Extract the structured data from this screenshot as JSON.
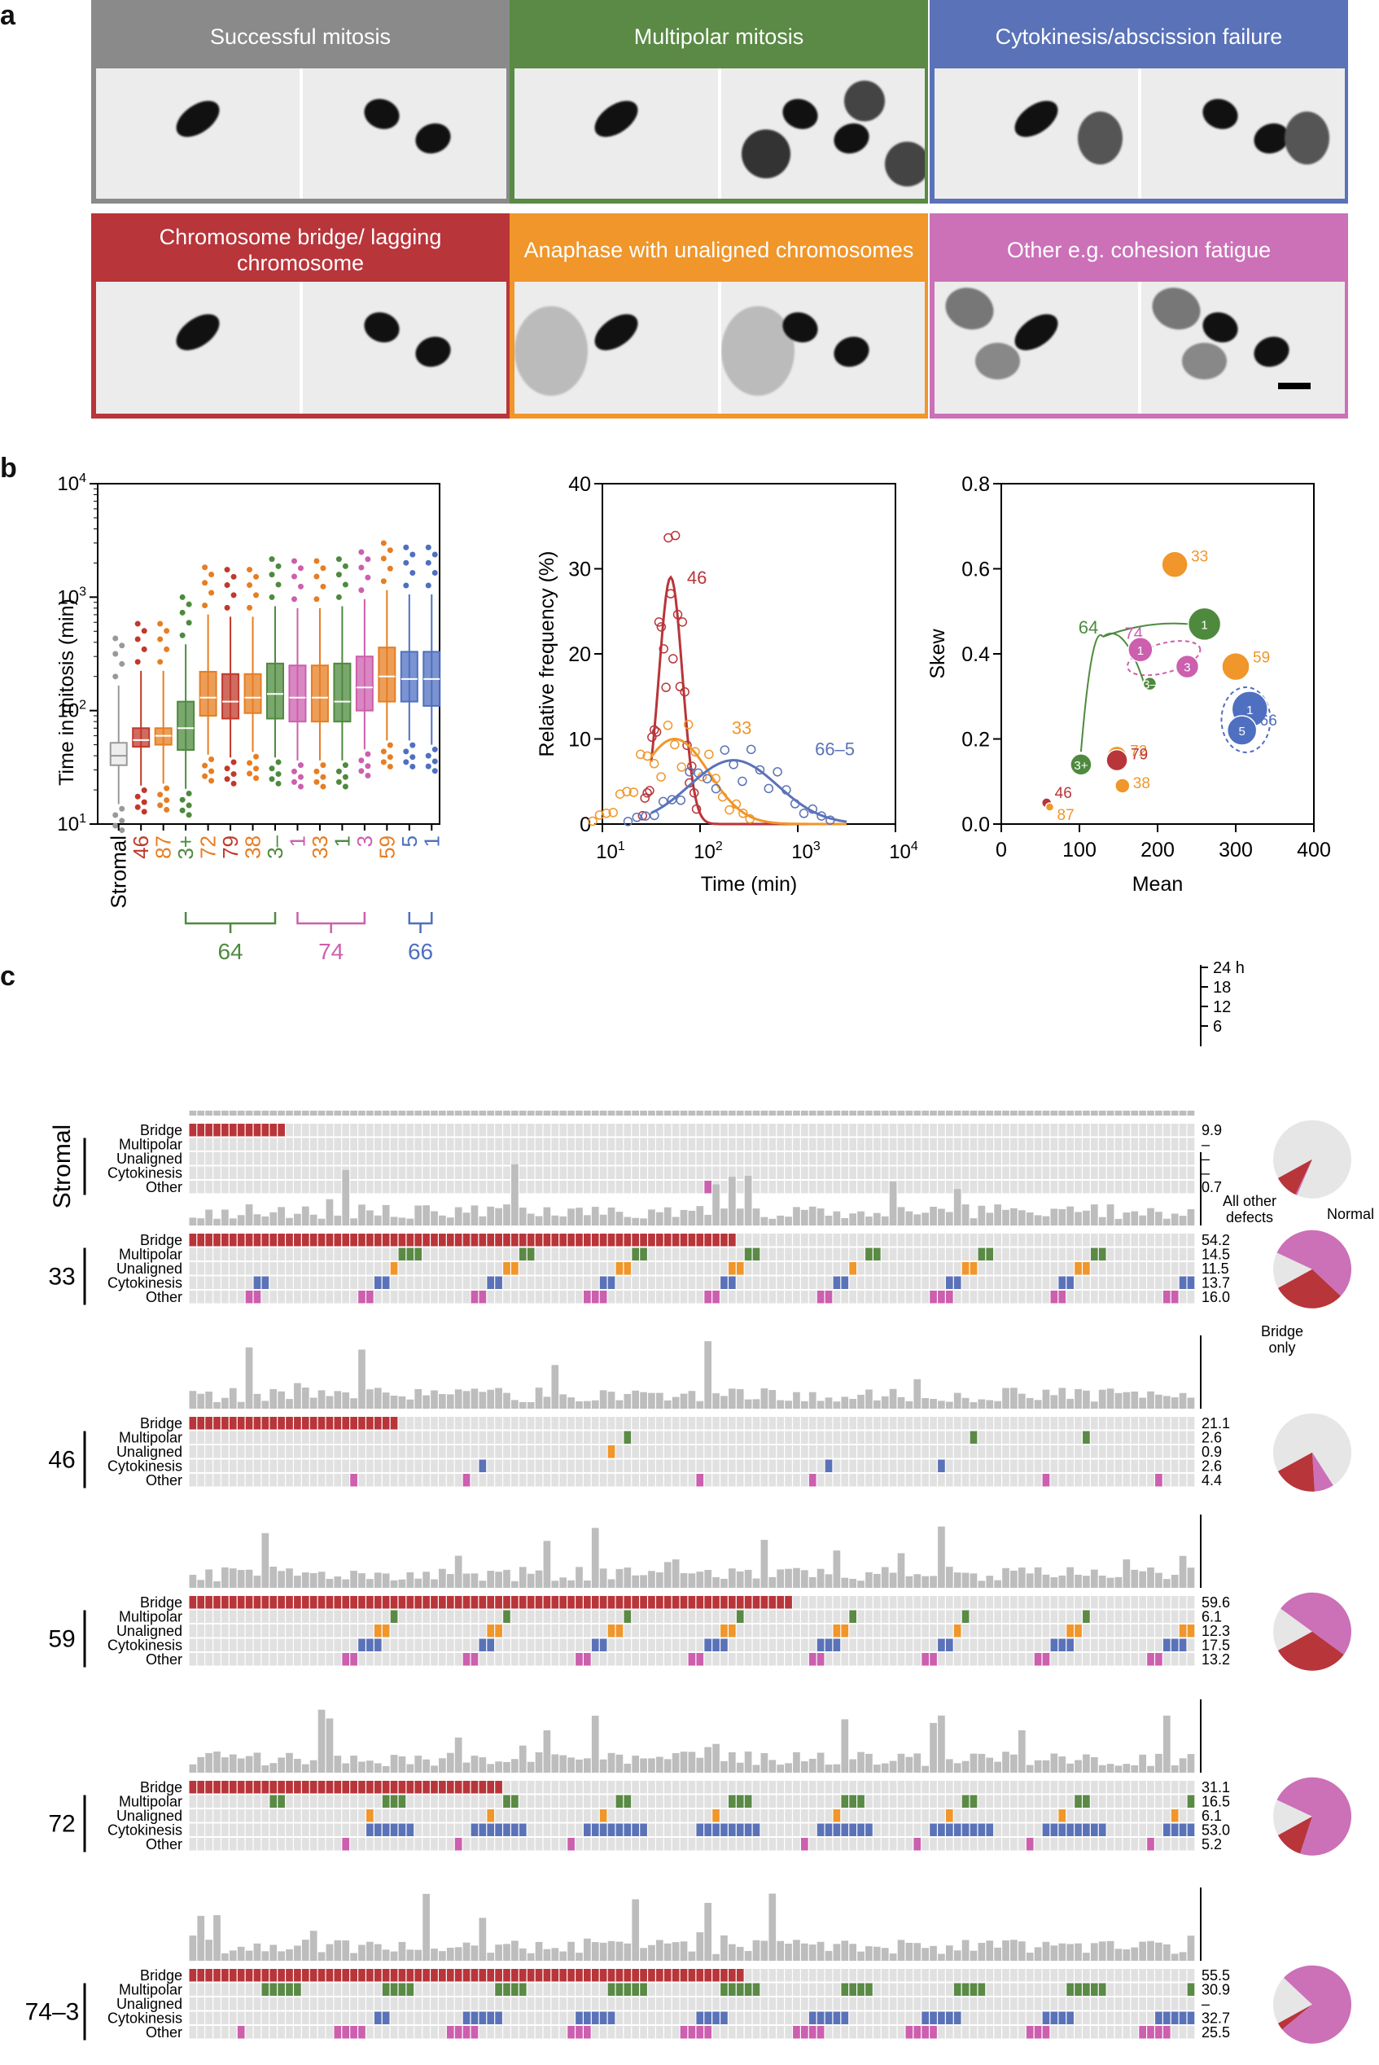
{
  "labels": {
    "a": "a",
    "b": "b",
    "c": "c"
  },
  "panels": [
    {
      "title": "Successful mitosis",
      "color": "#8a8a8a"
    },
    {
      "title": "Multipolar mitosis",
      "color": "#5a8a45"
    },
    {
      "title": "Cytokinesis/abscission failure",
      "color": "#5a72b8"
    },
    {
      "title": "Chromosome bridge/ lagging chromosome",
      "color": "#b8353a"
    },
    {
      "title": "Anaphase with unaligned chromosomes",
      "color": "#f0962a"
    },
    {
      "title": "Other e.g. cohesion fatigue",
      "color": "#cc70b8"
    }
  ],
  "chart_data": [
    {
      "type": "box",
      "ylabel": "Time in mitosis (min)",
      "yscale": "log",
      "ylim": [
        10,
        10000
      ],
      "ticks": [
        "10^1",
        "10^2",
        "10^3",
        "10^4"
      ],
      "categories": [
        "Stromal",
        "46",
        "87",
        "3+",
        "72",
        "79",
        "38",
        "3–",
        "1",
        "33",
        "1",
        "3",
        "59",
        "5",
        "1"
      ],
      "colors": [
        "#999999",
        "#c0392b",
        "#e67e22",
        "#4e8a3e",
        "#e67e22",
        "#c0392b",
        "#e67e22",
        "#4e8a3e",
        "#cc5fae",
        "#e67e22",
        "#4e8a3e",
        "#cc5fae",
        "#e67e22",
        "#4f6fc0",
        "#4f6fc0"
      ],
      "medians": [
        40,
        55,
        60,
        70,
        130,
        120,
        130,
        140,
        130,
        130,
        120,
        160,
        200,
        190,
        190
      ],
      "q1": [
        33,
        48,
        50,
        45,
        90,
        85,
        95,
        85,
        80,
        80,
        80,
        100,
        120,
        120,
        110
      ],
      "q3": [
        52,
        70,
        70,
        120,
        220,
        210,
        210,
        260,
        250,
        250,
        260,
        300,
        360,
        330,
        330
      ],
      "groups": [
        {
          "label": "64",
          "color": "#4e8a3e"
        },
        {
          "label": "74",
          "color": "#cc5fae"
        },
        {
          "label": "66",
          "color": "#4f6fc0"
        }
      ]
    },
    {
      "type": "line",
      "xlabel": "Time (min)",
      "ylabel": "Relative frequency (%)",
      "xscale": "log",
      "xlim": [
        10,
        10000
      ],
      "ylim": [
        0,
        40
      ],
      "yticks": [
        "0",
        "10",
        "20",
        "30",
        "40"
      ],
      "xticks": [
        "10^1",
        "10^2",
        "10^3",
        "10^4"
      ],
      "series": [
        {
          "name": "46",
          "color": "#b8353a",
          "peak_x": 50,
          "peak_y": 29,
          "width": 0.12
        },
        {
          "name": "33",
          "color": "#f0962a",
          "peak_x": 55,
          "peak_y": 10,
          "width": 0.35
        },
        {
          "name": "66–5",
          "color": "#5a72b8",
          "peak_x": 220,
          "peak_y": 7.5,
          "width": 0.45
        }
      ]
    },
    {
      "type": "scatter",
      "xlabel": "Mean",
      "ylabel": "Skew",
      "xlim": [
        0,
        400
      ],
      "ylim": [
        0,
        0.8
      ],
      "xticks": [
        "0",
        "100",
        "200",
        "300",
        "400"
      ],
      "yticks": [
        "0.0",
        "0.2",
        "0.4",
        "0.6",
        "0.8"
      ],
      "points": [
        {
          "label": "33",
          "x": 222,
          "y": 0.61,
          "color": "#f0962a",
          "r": 16,
          "inner": ""
        },
        {
          "label": "",
          "x": 260,
          "y": 0.47,
          "color": "#4e8a3e",
          "r": 20,
          "inner": "1"
        },
        {
          "label": "59",
          "x": 300,
          "y": 0.37,
          "color": "#f0962a",
          "r": 17,
          "inner": ""
        },
        {
          "label": "",
          "x": 178,
          "y": 0.41,
          "color": "#cc5fae",
          "r": 15,
          "inner": "1"
        },
        {
          "label": "",
          "x": 238,
          "y": 0.37,
          "color": "#cc5fae",
          "r": 14,
          "inner": "3"
        },
        {
          "label": "",
          "x": 190,
          "y": 0.33,
          "color": "#4e8a3e",
          "r": 8,
          "inner": "3–"
        },
        {
          "label": "",
          "x": 318,
          "y": 0.27,
          "color": "#4f6fc0",
          "r": 22,
          "inner": "1"
        },
        {
          "label": "66",
          "x": 308,
          "y": 0.22,
          "color": "#4f6fc0",
          "r": 18,
          "inner": "5"
        },
        {
          "label": "72",
          "x": 148,
          "y": 0.16,
          "color": "#f0962a",
          "r": 12,
          "inner": ""
        },
        {
          "label": "79",
          "x": 148,
          "y": 0.15,
          "color": "#b8353a",
          "r": 13,
          "inner": ""
        },
        {
          "label": "",
          "x": 102,
          "y": 0.14,
          "color": "#4e8a3e",
          "r": 13,
          "inner": "3+"
        },
        {
          "label": "38",
          "x": 155,
          "y": 0.09,
          "color": "#f0962a",
          "r": 9,
          "inner": ""
        },
        {
          "label": "46",
          "x": 58,
          "y": 0.05,
          "color": "#b8353a",
          "r": 6,
          "inner": ""
        },
        {
          "label": "87",
          "x": 62,
          "y": 0.04,
          "color": "#f0962a",
          "r": 5,
          "inner": ""
        }
      ],
      "annotations": [
        "64",
        "74"
      ]
    },
    {
      "type": "heatmap",
      "row_labels": [
        "Bridge",
        "Multipolar",
        "Unaligned",
        "Cytokinesis",
        "Other"
      ],
      "row_colors": [
        "#b8353a",
        "#5a8a45",
        "#f0962a",
        "#5a72b8",
        "#cc5fae"
      ],
      "hour_ticks": [
        "24 h",
        "18",
        "12",
        "6"
      ],
      "pie_labels": {
        "other": "All other defects",
        "normal": "Normal",
        "bridge": "Bridge only"
      },
      "groups": [
        {
          "name": "Stromal",
          "values": [
            "9.9",
            "–",
            "–",
            "–",
            "0.7"
          ],
          "pie": {
            "bridge": 9.9,
            "other": 0.7
          }
        },
        {
          "name": "33",
          "values": [
            "54.2",
            "14.5",
            "11.5",
            "13.7",
            "16.0"
          ],
          "pie": {
            "bridge": 30,
            "other": 55
          }
        },
        {
          "name": "46",
          "values": [
            "21.1",
            "2.6",
            "0.9",
            "2.6",
            "4.4"
          ],
          "pie": {
            "bridge": 18,
            "other": 8
          }
        },
        {
          "name": "59",
          "values": [
            "59.6",
            "6.1",
            "12.3",
            "17.5",
            "13.2"
          ],
          "pie": {
            "bridge": 32,
            "other": 50
          }
        },
        {
          "name": "72",
          "values": [
            "31.1",
            "16.5",
            "6.1",
            "53.0",
            "5.2"
          ],
          "pie": {
            "bridge": 12,
            "other": 73
          }
        },
        {
          "name": "74–3",
          "values": [
            "55.5",
            "30.9",
            "–",
            "32.7",
            "25.5"
          ],
          "pie": {
            "bridge": 3,
            "other": 77
          }
        }
      ]
    }
  ]
}
